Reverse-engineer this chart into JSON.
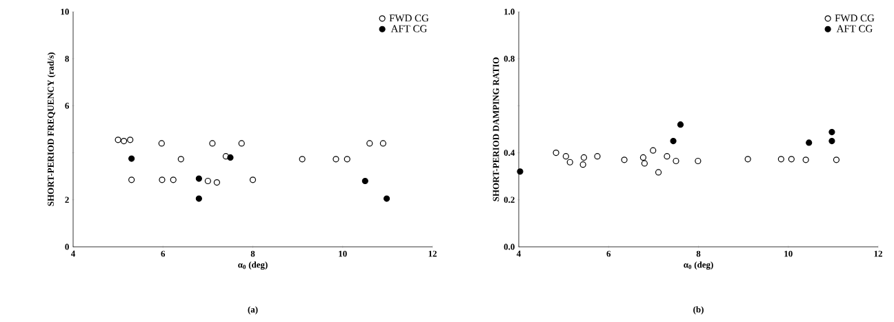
{
  "chart_data": [
    {
      "type": "scatter",
      "xlabel": "α$_{0}$ (deg)",
      "ylabel": "SHORT-PERIOD FREQUENCY (rad/s)",
      "xlim": [
        4,
        12
      ],
      "ylim": [
        0,
        10
      ],
      "xticks": [
        4,
        6,
        8,
        10,
        12
      ],
      "yticks": [
        0,
        2,
        {
          "value": 4,
          "label": null
        },
        6,
        8,
        10
      ],
      "marker": "circle",
      "legend": "top right",
      "annotations": [
        "(a)"
      ],
      "series": [
        {
          "name": "FWD CG",
          "color": "#000000",
          "x": [
            5.0,
            5.13,
            5.27,
            5.97,
            7.1,
            7.75,
            6.4,
            7.4,
            9.1,
            9.85,
            10.1,
            10.6,
            10.9,
            5.3,
            5.98,
            6.23,
            7.0,
            7.2,
            8.0
          ],
          "values": [
            4.55,
            4.5,
            4.55,
            4.4,
            4.4,
            4.4,
            3.73,
            3.85,
            3.73,
            3.73,
            3.73,
            4.4,
            4.4,
            2.85,
            2.85,
            2.85,
            2.8,
            2.74,
            2.85
          ]
        },
        {
          "name": "AFT CG",
          "color": "#000000",
          "x": [
            5.3,
            6.8,
            7.5,
            10.5,
            6.8,
            10.98
          ],
          "values": [
            3.75,
            2.9,
            3.8,
            2.8,
            2.05,
            2.05
          ]
        }
      ]
    },
    {
      "type": "scatter",
      "xlabel": "α$_{0}$ (deg)",
      "ylabel": "SHORT-PERIOD DAMPING RATIO",
      "xlim": [
        4,
        12
      ],
      "ylim": [
        0,
        1
      ],
      "xticks": [
        4,
        6,
        8,
        10,
        12
      ],
      "yticks": [
        {
          "value": 0,
          "label": "0.0"
        },
        0.2,
        0.4,
        {
          "value": 0.6,
          "label": null
        },
        0.8,
        {
          "value": 1,
          "label": "1.0"
        }
      ],
      "marker": "circle",
      "legend": "top right",
      "annotations": [
        "(b)"
      ],
      "series": [
        {
          "name": "FWD CG",
          "color": "#000000",
          "x": [
            4.83,
            5.05,
            5.14,
            5.45,
            5.43,
            5.75,
            6.35,
            6.77,
            6.8,
            6.99,
            7.11,
            7.3,
            7.5,
            7.99,
            9.1,
            9.84,
            10.07,
            10.39,
            11.07
          ],
          "values": [
            0.4,
            0.385,
            0.36,
            0.38,
            0.35,
            0.385,
            0.37,
            0.38,
            0.355,
            0.41,
            0.317,
            0.385,
            0.365,
            0.365,
            0.373,
            0.373,
            0.373,
            0.37,
            0.37
          ]
        },
        {
          "name": "AFT CG",
          "color": "#000000",
          "x": [
            4.03,
            7.44,
            7.6,
            10.46,
            10.97,
            10.97
          ],
          "values": [
            0.32,
            0.45,
            0.52,
            0.443,
            0.488,
            0.45
          ]
        }
      ]
    }
  ]
}
